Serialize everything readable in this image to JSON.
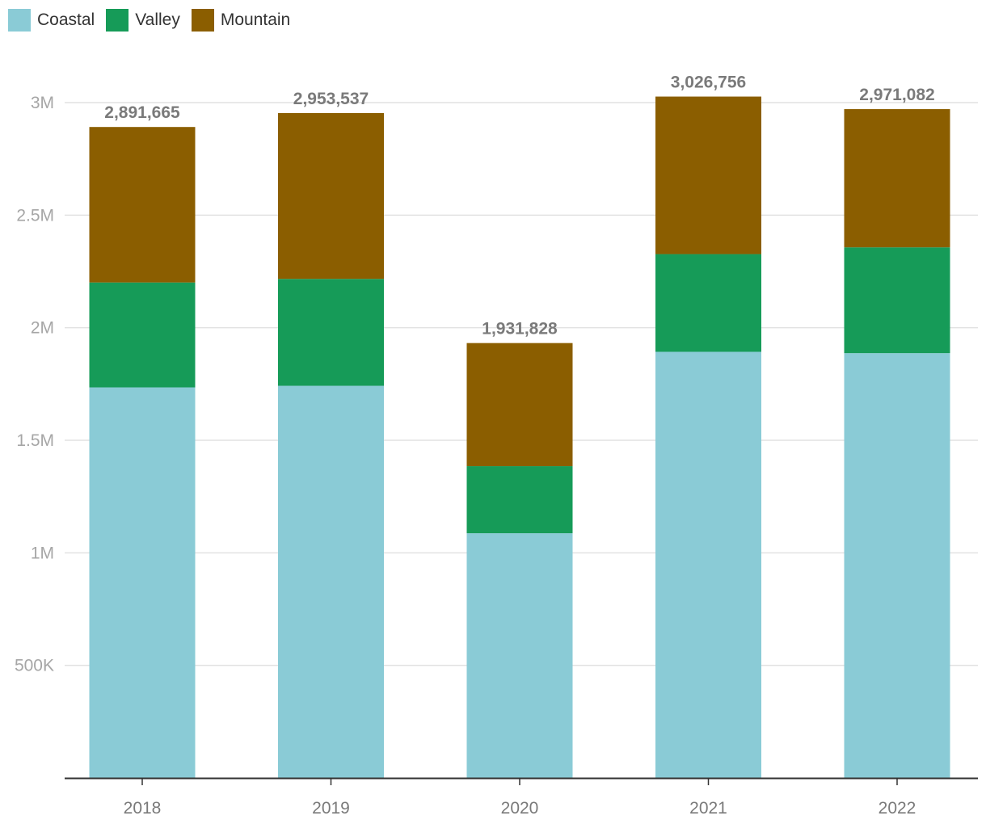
{
  "chart_data": {
    "type": "bar",
    "stacked": true,
    "title": "",
    "xlabel": "",
    "ylabel": "",
    "categories": [
      "2018",
      "2019",
      "2020",
      "2021",
      "2022"
    ],
    "series": [
      {
        "name": "Coastal",
        "color": "#8acbd6",
        "values": [
          1735000,
          1742000,
          1087000,
          1893000,
          1887000
        ]
      },
      {
        "name": "Valley",
        "color": "#169b58",
        "values": [
          466000,
          475000,
          298000,
          434000,
          470000
        ]
      },
      {
        "name": "Mountain",
        "color": "#8b5e00",
        "values": [
          690665,
          736537,
          546828,
          699756,
          614082
        ]
      }
    ],
    "totals": [
      "2,891,665",
      "2,953,537",
      "1,931,828",
      "3,026,756",
      "2,971,082"
    ],
    "yticks": [
      {
        "value": 500000,
        "label": "500K"
      },
      {
        "value": 1000000,
        "label": "1M"
      },
      {
        "value": 1500000,
        "label": "1.5M"
      },
      {
        "value": 2000000,
        "label": "2M"
      },
      {
        "value": 2500000,
        "label": "2.5M"
      },
      {
        "value": 3000000,
        "label": "3M"
      }
    ],
    "ylim": [
      0,
      3000000
    ],
    "grid": true,
    "legend_position": "top-left"
  }
}
